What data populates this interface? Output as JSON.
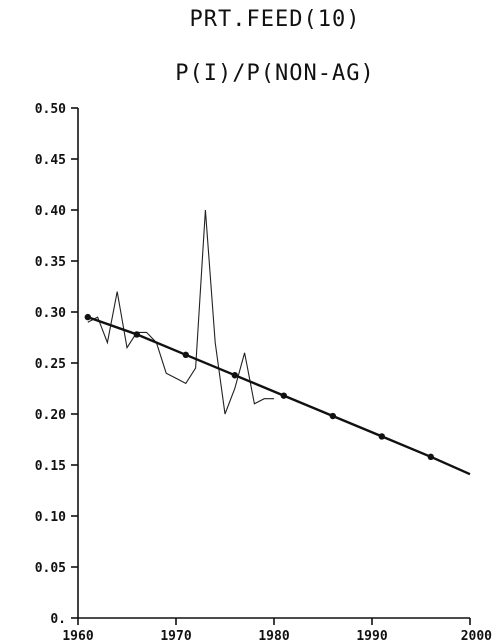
{
  "chart_data": {
    "type": "line",
    "title": "PRT.FEED(10)",
    "subtitle": "P(I)/P(NON-AG)",
    "xlabel": "",
    "ylabel": "",
    "xlim": [
      1960,
      2000
    ],
    "ylim": [
      0,
      0.5
    ],
    "x_ticks": [
      1960,
      1970,
      1980,
      1990,
      2000
    ],
    "x_tick_labels": [
      "1960",
      "1970",
      "1980",
      "1990",
      "2000"
    ],
    "y_ticks": [
      0,
      0.05,
      0.1,
      0.15,
      0.2,
      0.25,
      0.3,
      0.35,
      0.4,
      0.45,
      0.5
    ],
    "y_tick_labels": [
      "0.",
      "0.05",
      "0.10",
      "0.15",
      "0.20",
      "0.25",
      "0.30",
      "0.35",
      "0.40",
      "0.45",
      "0.50"
    ],
    "grid": false,
    "series": [
      {
        "style": "thin",
        "x": [
          1961,
          1962,
          1963,
          1964,
          1965,
          1966,
          1967,
          1968,
          1969,
          1970,
          1971,
          1972,
          1973,
          1974,
          1975,
          1976,
          1977,
          1978,
          1979,
          1980
        ],
        "y": [
          0.29,
          0.295,
          0.27,
          0.32,
          0.265,
          0.28,
          0.28,
          0.27,
          0.24,
          0.235,
          0.23,
          0.245,
          0.4,
          0.27,
          0.2,
          0.225,
          0.26,
          0.21,
          0.215,
          0.215
        ]
      },
      {
        "style": "thick",
        "x": [
          1961,
          1966,
          1971,
          1976,
          1981,
          1986,
          1991,
          1996,
          2000
        ],
        "y": [
          0.295,
          0.278,
          0.258,
          0.238,
          0.218,
          0.198,
          0.178,
          0.158,
          0.141
        ],
        "markers": [
          1961,
          1966,
          1971,
          1976,
          1981,
          1986,
          1991,
          1996
        ]
      }
    ]
  }
}
